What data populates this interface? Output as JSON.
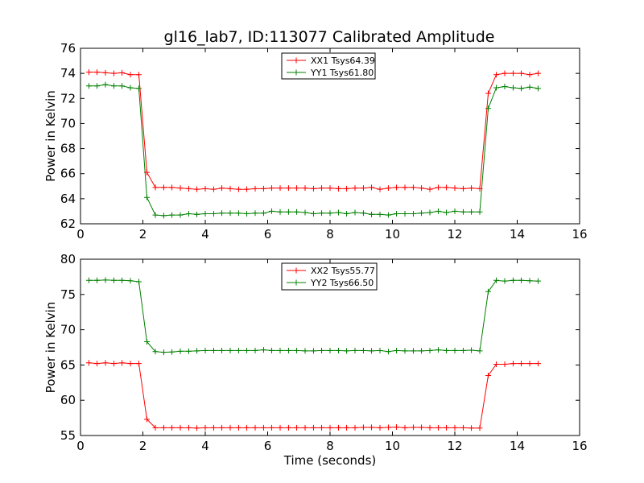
{
  "figure_title": "gl16_lab7, ID:113077 Calibrated Amplitude",
  "chart_data": [
    {
      "type": "line",
      "title": "gl16_lab7, ID:113077 Calibrated Amplitude",
      "xlabel": "",
      "ylabel": "Power in Kelvin",
      "xlim": [
        0,
        16
      ],
      "ylim": [
        62,
        76
      ],
      "xticks": [
        "0",
        "2",
        "4",
        "6",
        "8",
        "10",
        "12",
        "14",
        "16"
      ],
      "yticks": [
        "62",
        "64",
        "66",
        "68",
        "70",
        "72",
        "74",
        "76"
      ],
      "grid": false,
      "legend_position": "top-center",
      "x": [
        0.27,
        0.53,
        0.8,
        1.07,
        1.33,
        1.6,
        1.87,
        2.13,
        2.4,
        2.67,
        2.93,
        3.2,
        3.47,
        3.73,
        4.0,
        4.27,
        4.53,
        4.8,
        5.07,
        5.33,
        5.6,
        5.87,
        6.13,
        6.4,
        6.67,
        6.93,
        7.2,
        7.47,
        7.73,
        8.0,
        8.27,
        8.53,
        8.8,
        9.07,
        9.33,
        9.6,
        9.87,
        10.13,
        10.4,
        10.67,
        10.93,
        11.2,
        11.47,
        11.73,
        12.0,
        12.27,
        12.53,
        12.8,
        13.07,
        13.33,
        13.6,
        13.87,
        14.13,
        14.4,
        14.67
      ],
      "series": [
        {
          "name": "XX1 Tsys64.39",
          "color": "#ff0000",
          "values": [
            74.1,
            74.1,
            74.05,
            74.0,
            74.05,
            73.9,
            73.9,
            66.1,
            64.9,
            64.9,
            64.9,
            64.85,
            64.8,
            64.75,
            64.8,
            64.75,
            64.85,
            64.8,
            64.75,
            64.75,
            64.8,
            64.8,
            64.85,
            64.85,
            64.85,
            64.85,
            64.85,
            64.8,
            64.85,
            64.85,
            64.8,
            64.8,
            64.85,
            64.85,
            64.9,
            64.75,
            64.85,
            64.9,
            64.9,
            64.9,
            64.85,
            64.75,
            64.9,
            64.9,
            64.85,
            64.8,
            64.85,
            64.8,
            72.4,
            73.9,
            74.0,
            74.0,
            74.0,
            73.9,
            74.0
          ]
        },
        {
          "name": "YY1 Tsys61.80",
          "color": "#008000",
          "values": [
            73.0,
            73.0,
            73.1,
            73.0,
            73.0,
            72.85,
            72.8,
            64.1,
            62.7,
            62.65,
            62.7,
            62.7,
            62.8,
            62.75,
            62.8,
            62.8,
            62.85,
            62.85,
            62.85,
            62.8,
            62.85,
            62.85,
            63.0,
            62.95,
            62.95,
            62.95,
            62.9,
            62.8,
            62.85,
            62.85,
            62.9,
            62.8,
            62.9,
            62.85,
            62.75,
            62.75,
            62.7,
            62.8,
            62.8,
            62.8,
            62.85,
            62.9,
            63.0,
            62.9,
            63.0,
            62.95,
            62.95,
            62.95,
            71.2,
            72.85,
            72.95,
            72.85,
            72.8,
            72.9,
            72.8
          ]
        }
      ]
    },
    {
      "type": "line",
      "title": "",
      "xlabel": "Time (seconds)",
      "ylabel": "Power in Kelvin",
      "xlim": [
        0,
        16
      ],
      "ylim": [
        55,
        80
      ],
      "xticks": [
        "0",
        "2",
        "4",
        "6",
        "8",
        "10",
        "12",
        "14",
        "16"
      ],
      "yticks": [
        "55",
        "60",
        "65",
        "70",
        "75",
        "80"
      ],
      "grid": false,
      "legend_position": "top-center",
      "x": [
        0.27,
        0.53,
        0.8,
        1.07,
        1.33,
        1.6,
        1.87,
        2.13,
        2.4,
        2.67,
        2.93,
        3.2,
        3.47,
        3.73,
        4.0,
        4.27,
        4.53,
        4.8,
        5.07,
        5.33,
        5.6,
        5.87,
        6.13,
        6.4,
        6.67,
        6.93,
        7.2,
        7.47,
        7.73,
        8.0,
        8.27,
        8.53,
        8.8,
        9.07,
        9.33,
        9.6,
        9.87,
        10.13,
        10.4,
        10.67,
        10.93,
        11.2,
        11.47,
        11.73,
        12.0,
        12.27,
        12.53,
        12.8,
        13.07,
        13.33,
        13.6,
        13.87,
        14.13,
        14.4,
        14.67
      ],
      "series": [
        {
          "name": "XX2 Tsys55.77",
          "color": "#ff0000",
          "values": [
            65.3,
            65.2,
            65.3,
            65.2,
            65.3,
            65.2,
            65.2,
            57.3,
            56.1,
            56.1,
            56.1,
            56.1,
            56.1,
            56.05,
            56.1,
            56.1,
            56.1,
            56.1,
            56.1,
            56.1,
            56.1,
            56.1,
            56.1,
            56.1,
            56.1,
            56.1,
            56.1,
            56.1,
            56.1,
            56.1,
            56.1,
            56.1,
            56.1,
            56.15,
            56.15,
            56.1,
            56.15,
            56.2,
            56.1,
            56.15,
            56.15,
            56.1,
            56.1,
            56.1,
            56.1,
            56.1,
            56.05,
            56.05,
            63.5,
            65.1,
            65.1,
            65.2,
            65.2,
            65.2,
            65.2
          ]
        },
        {
          "name": "YY2 Tsys66.50",
          "color": "#008000",
          "values": [
            77.0,
            77.0,
            77.05,
            77.0,
            77.0,
            76.95,
            76.8,
            68.3,
            66.9,
            66.8,
            66.85,
            66.95,
            66.95,
            67.0,
            67.05,
            67.05,
            67.05,
            67.05,
            67.05,
            67.05,
            67.05,
            67.15,
            67.05,
            67.05,
            67.05,
            67.05,
            67.0,
            67.0,
            67.05,
            67.05,
            67.05,
            67.0,
            67.05,
            67.05,
            67.0,
            67.05,
            66.9,
            67.05,
            67.0,
            67.0,
            67.0,
            67.05,
            67.15,
            67.05,
            67.05,
            67.05,
            67.1,
            67.0,
            75.4,
            77.0,
            76.9,
            77.0,
            77.0,
            76.95,
            76.9
          ]
        }
      ]
    }
  ]
}
